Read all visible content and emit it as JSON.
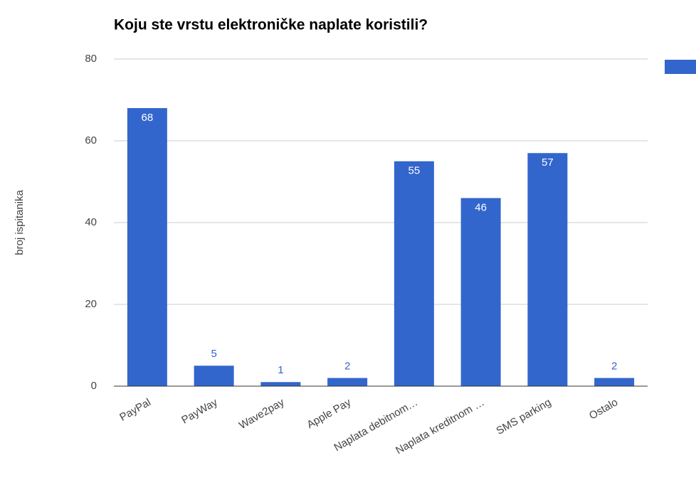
{
  "chart_data": {
    "type": "bar",
    "title": "Koju ste vrstu elektroničke naplate koristili?",
    "y_label": "broj ispitanika",
    "categories": [
      "PayPal",
      "PayWay",
      "Wave2pay",
      "Apple Pay",
      "Naplata debitnom…",
      "Naplata kreditnom …",
      "SMS parking",
      "Ostalo"
    ],
    "values": [
      68,
      5,
      1,
      2,
      55,
      46,
      57,
      2
    ],
    "color": "#3366cc",
    "ylim": [
      0,
      80
    ],
    "yticks": [
      0,
      20,
      40,
      60,
      80
    ],
    "grid": true
  }
}
